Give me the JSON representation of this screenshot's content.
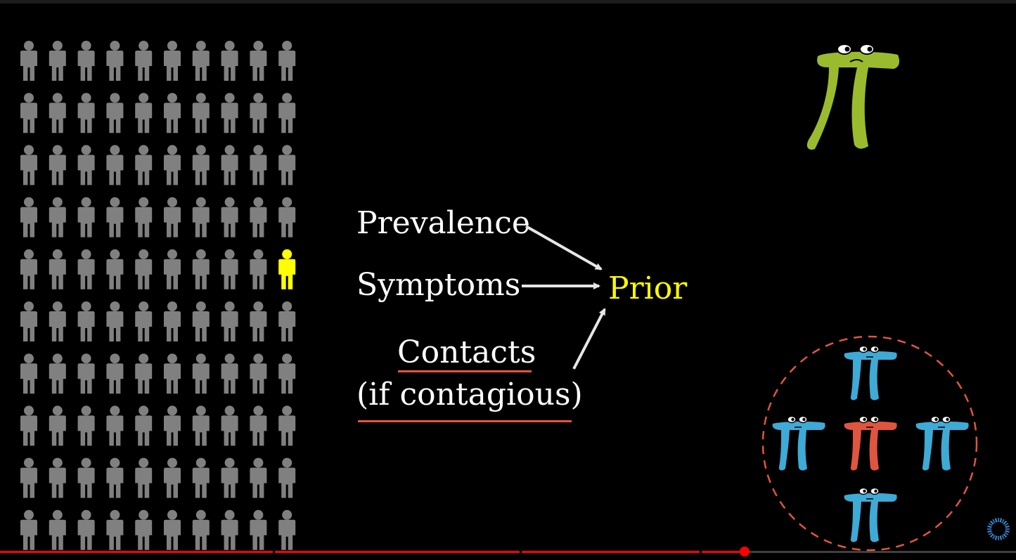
{
  "diagram": {
    "inputs": [
      {
        "label": "Prevalence"
      },
      {
        "label": "Symptoms"
      },
      {
        "label": "Contacts",
        "sublabel": "(if contagious)"
      }
    ],
    "output": {
      "label": "Prior",
      "color": "#ffff00"
    },
    "underline_color": "#e2563e",
    "arrow_color": "#e6e6e6"
  },
  "population": {
    "rows": 10,
    "cols": 10,
    "highlighted": {
      "row": 5,
      "col": 10
    },
    "person_color": "#808080",
    "highlight_color": "#ffff00"
  },
  "characters": {
    "main": {
      "name": "pi-creature-green",
      "color": "#9bbb2f"
    },
    "group": [
      {
        "name": "pi-creature-blue-top",
        "color": "#3eaad6"
      },
      {
        "name": "pi-creature-blue-left",
        "color": "#3eaad6"
      },
      {
        "name": "pi-creature-red-center",
        "color": "#e0553e"
      },
      {
        "name": "pi-creature-blue-right",
        "color": "#3eaad6"
      },
      {
        "name": "pi-creature-blue-bottom",
        "color": "#3eaad6"
      }
    ],
    "contact_circle_color": "#e0553e"
  },
  "player": {
    "progress_fraction": 0.733,
    "played_color": "#ff0000",
    "icons": [
      "loading-spinner-icon"
    ]
  }
}
